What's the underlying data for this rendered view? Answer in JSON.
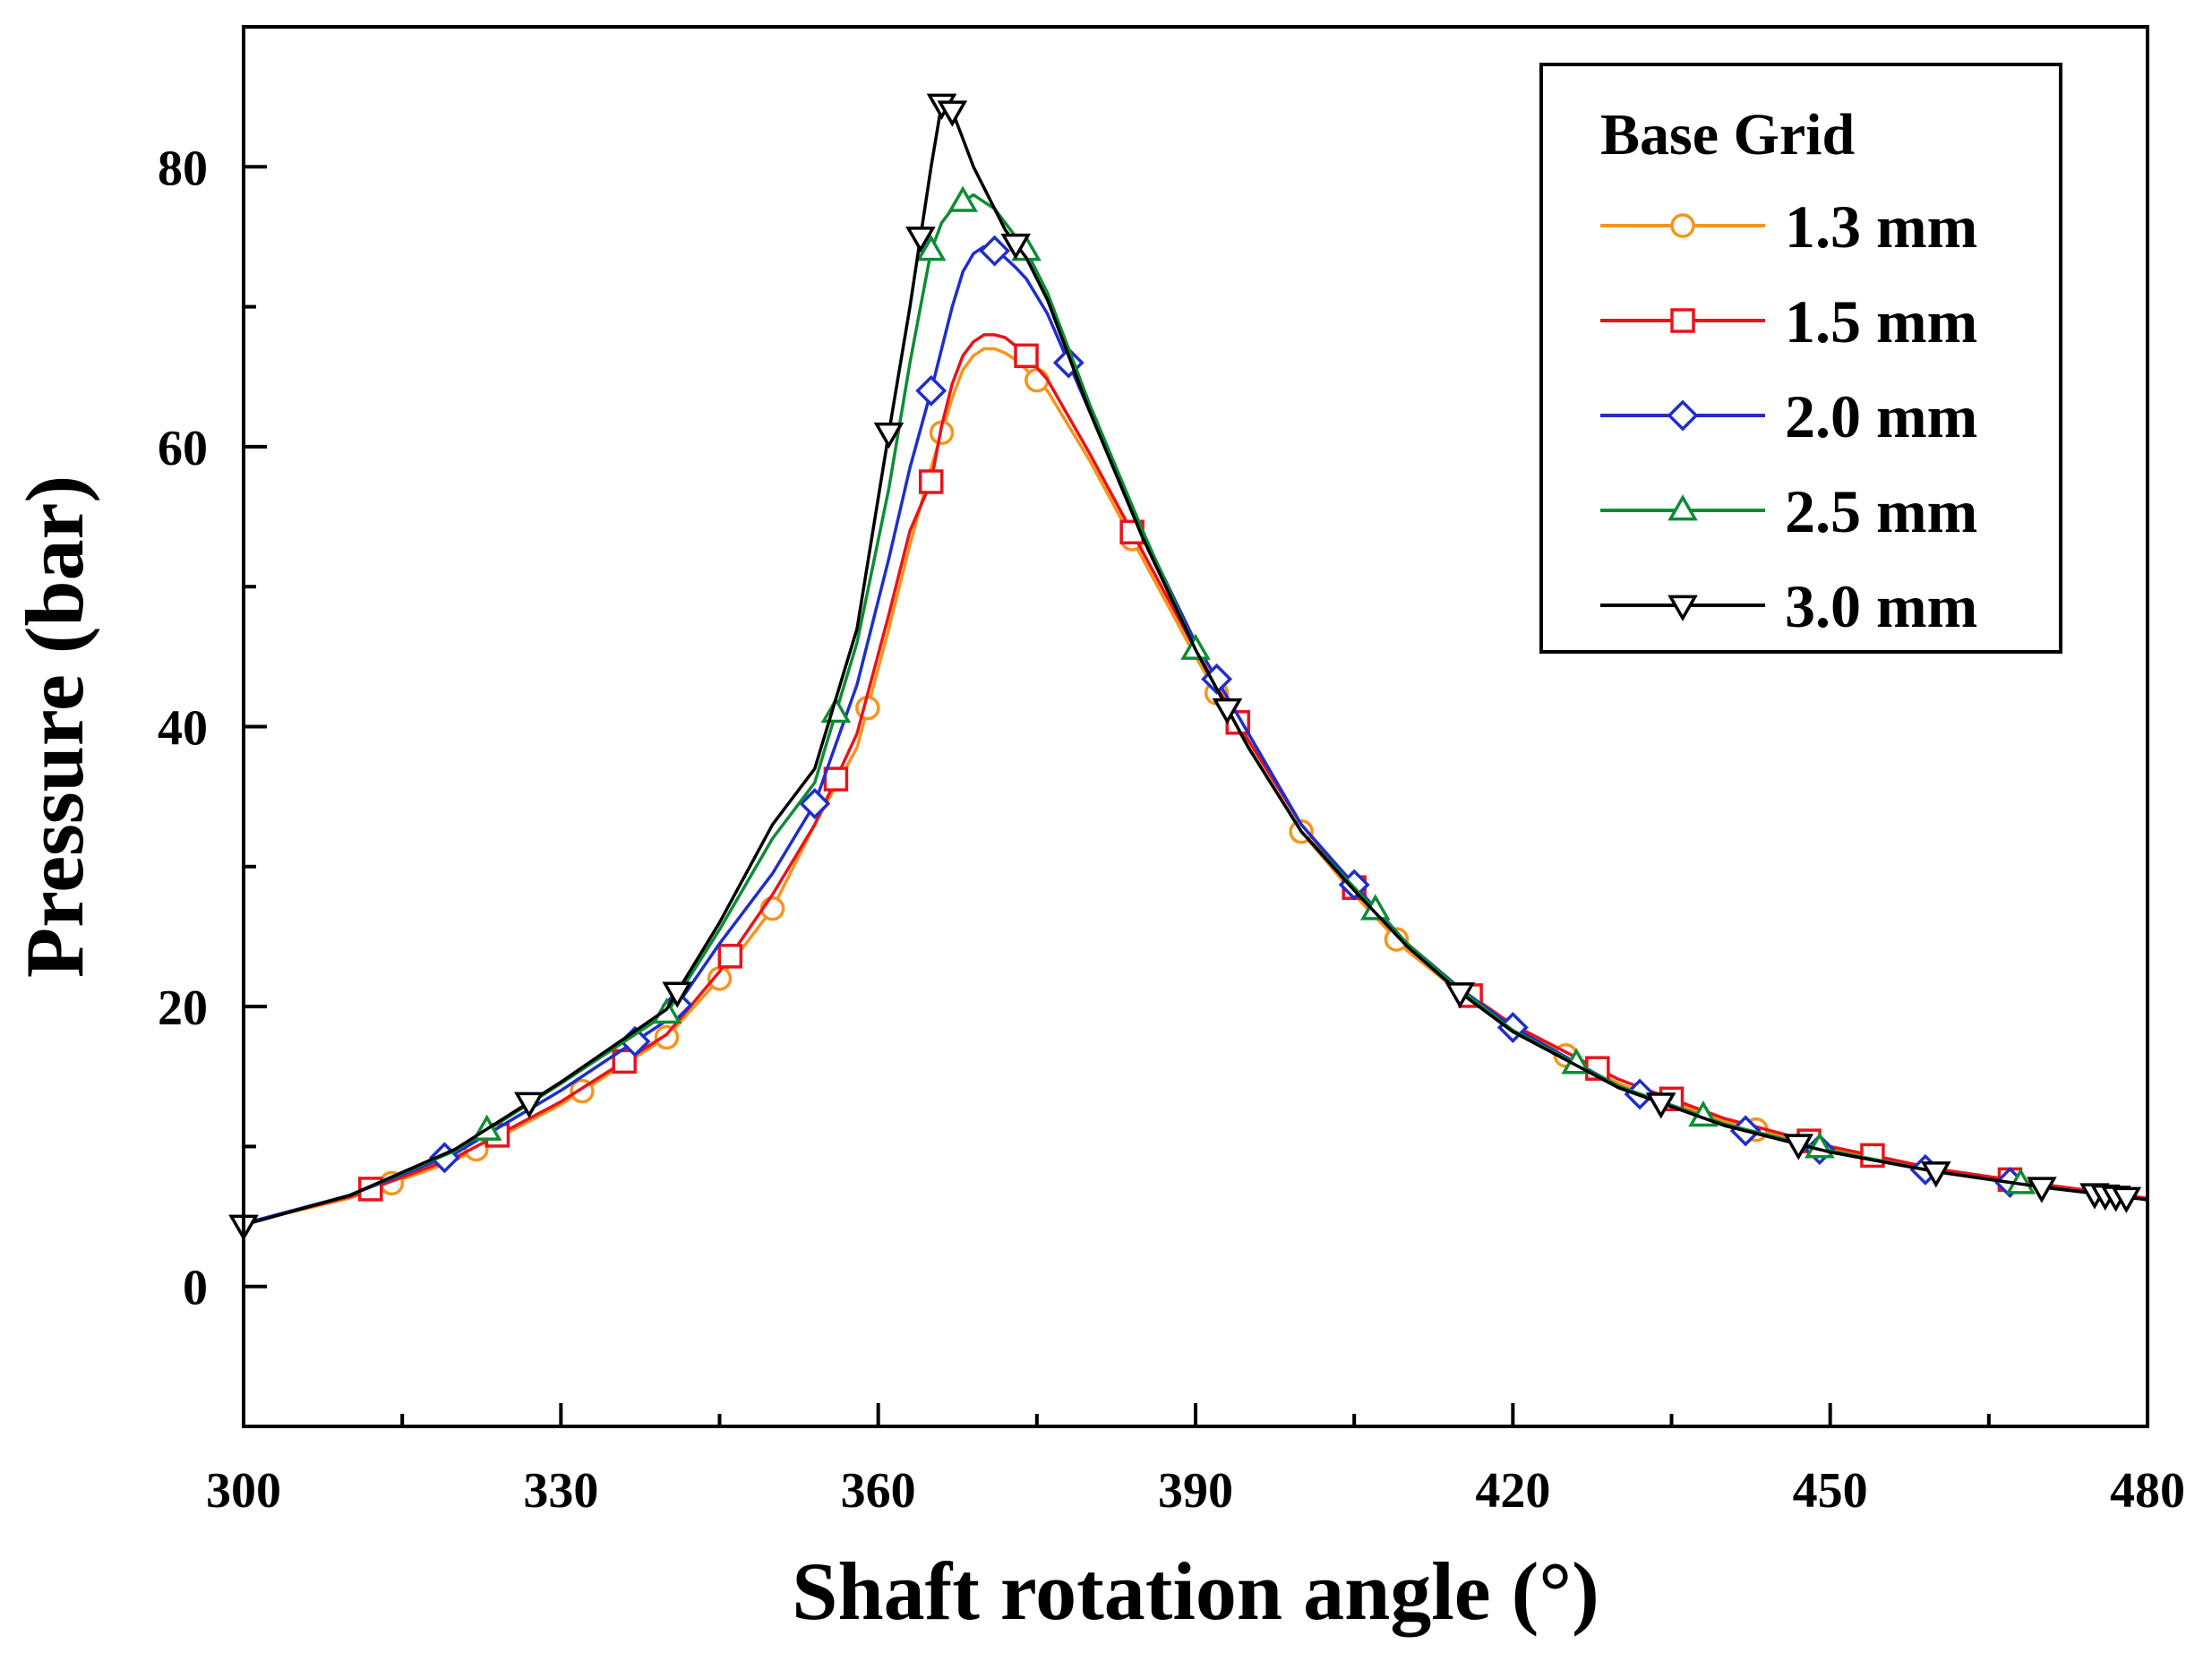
{
  "chart_data": {
    "type": "line",
    "title": "",
    "xlabel": "Shaft rotation angle (°)",
    "ylabel": "Pressure (bar)",
    "xlim": [
      300,
      480
    ],
    "ylim": [
      -10,
      90
    ],
    "xticks": [
      300,
      330,
      360,
      390,
      420,
      450,
      480
    ],
    "yticks": [
      0,
      20,
      40,
      60,
      80
    ],
    "x_minor_step": 15,
    "y_minor_step": 10,
    "grid": false,
    "legend": {
      "title": "Base Grid",
      "position": "top-right"
    },
    "x": [
      300,
      310,
      320,
      330,
      340,
      345,
      350,
      354,
      358,
      361,
      363,
      365,
      366,
      367,
      368,
      369,
      370,
      371,
      372,
      373,
      374,
      376,
      380,
      385,
      390,
      395,
      400,
      405,
      410,
      415,
      420,
      430,
      440,
      450,
      460,
      470,
      480
    ],
    "series": [
      {
        "name": "1.3 mm",
        "color": "#F7941D",
        "marker": "circle",
        "values": [
          4.5,
          6.3,
          9.0,
          13.0,
          17.8,
          22.0,
          27.0,
          33.0,
          38.5,
          47.0,
          53.0,
          58.5,
          61.0,
          63.5,
          65.5,
          66.5,
          67.0,
          67.0,
          66.7,
          66.2,
          65.5,
          64.0,
          59.0,
          52.0,
          45.0,
          38.5,
          32.5,
          28.0,
          24.0,
          21.0,
          18.5,
          14.5,
          11.8,
          9.8,
          8.3,
          7.2,
          6.2
        ],
        "marker_x": [
          314,
          322,
          332,
          340,
          345,
          350,
          359,
          366,
          375,
          384,
          392,
          400,
          409,
          425,
          443
        ]
      },
      {
        "name": "1.5 mm",
        "color": "#E8141B",
        "marker": "square",
        "values": [
          4.5,
          6.4,
          9.2,
          13.2,
          18.0,
          22.5,
          28.0,
          33.0,
          39.5,
          48.0,
          54.0,
          57.5,
          61.5,
          64.5,
          66.5,
          67.5,
          68.0,
          68.0,
          67.8,
          67.2,
          66.5,
          64.8,
          59.5,
          52.5,
          45.5,
          39.0,
          33.0,
          28.5,
          24.5,
          21.3,
          18.7,
          14.8,
          12.0,
          10.0,
          8.4,
          7.3,
          6.3
        ],
        "marker_x": [
          312,
          324,
          336,
          346,
          356,
          365,
          374,
          384,
          394,
          405,
          416,
          428,
          435,
          448,
          454,
          467
        ]
      },
      {
        "name": "2.0 mm",
        "color": "#1F2EC9",
        "marker": "diamond",
        "values": [
          4.5,
          6.5,
          9.5,
          14.0,
          19.0,
          24.5,
          29.5,
          34.5,
          43.0,
          52.0,
          58.5,
          64.0,
          67.0,
          70.0,
          72.5,
          73.8,
          74.3,
          74.0,
          73.5,
          72.8,
          72.0,
          69.5,
          62.5,
          53.8,
          46.0,
          39.5,
          33.0,
          28.7,
          24.5,
          21.3,
          18.5,
          14.3,
          11.5,
          9.6,
          8.2,
          7.1,
          6.2
        ],
        "marker_x": [
          319,
          337,
          341,
          354,
          365,
          371,
          378,
          392,
          405,
          420,
          432,
          442,
          449,
          459,
          467
        ]
      },
      {
        "name": "2.5 mm",
        "color": "#0E8C34",
        "marker": "triangle-up",
        "values": [
          4.4,
          6.5,
          9.7,
          14.5,
          19.5,
          25.5,
          32.0,
          36.0,
          46.0,
          57.0,
          66.0,
          74.0,
          76.0,
          77.0,
          77.5,
          78.0,
          77.5,
          77.0,
          76.0,
          75.0,
          74.0,
          71.0,
          63.0,
          54.0,
          45.5,
          38.5,
          32.5,
          28.5,
          24.5,
          21.2,
          18.3,
          14.3,
          11.6,
          9.7,
          8.2,
          7.1,
          6.2
        ],
        "marker_x": [
          323,
          340,
          356,
          365,
          368,
          374,
          390,
          407,
          426,
          438,
          449,
          468
        ]
      },
      {
        "name": "3.0 mm",
        "color": "#000000",
        "marker": "triangle-down",
        "values": [
          4.4,
          6.5,
          9.8,
          14.6,
          19.8,
          26.0,
          33.0,
          37.0,
          47.0,
          61.0,
          70.0,
          80.0,
          84.5,
          84.0,
          82.0,
          80.0,
          78.5,
          77.0,
          75.5,
          74.5,
          73.5,
          70.5,
          62.5,
          53.5,
          45.5,
          38.5,
          32.5,
          28.3,
          24.3,
          21.0,
          18.2,
          14.2,
          11.5,
          9.6,
          8.2,
          7.1,
          6.2
        ],
        "marker_x": [
          300,
          327,
          341,
          361,
          364,
          366,
          367,
          373,
          393,
          415,
          434,
          447,
          460,
          470,
          475,
          476,
          477,
          478
        ]
      }
    ]
  }
}
